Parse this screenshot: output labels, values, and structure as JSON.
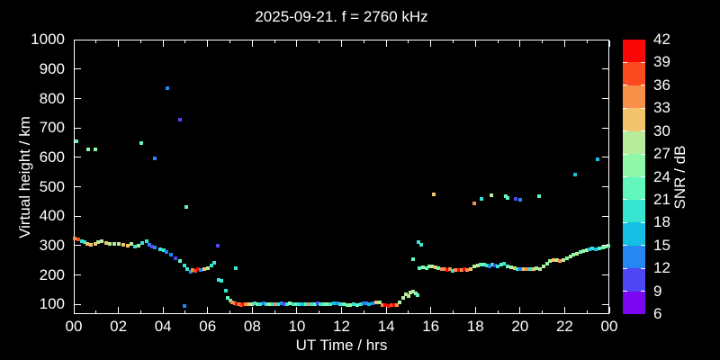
{
  "title": "2025-09-21. f = 2760 kHz",
  "chart_data": {
    "type": "scatter",
    "title": "2025-09-21. f = 2760 kHz",
    "xlabel": "UT Time / hrs",
    "ylabel": "Virtual height / km",
    "xlim": [
      0,
      24
    ],
    "ylim": [
      67,
      1001
    ],
    "grid": false,
    "background_color": "#000000",
    "frame_color": "#ffffff",
    "text_color": "#ffffff",
    "x_major_tick_hours": [
      0,
      2,
      4,
      6,
      8,
      10,
      12,
      14,
      16,
      18,
      20,
      22,
      24
    ],
    "x_tick_labels": [
      "00",
      "02",
      "04",
      "06",
      "08",
      "10",
      "12",
      "14",
      "16",
      "18",
      "20",
      "22",
      "00"
    ],
    "x_minor_tick_hours": [
      1,
      3,
      5,
      7,
      9,
      11,
      13,
      15,
      17,
      19,
      21,
      23
    ],
    "y_ticks": [
      100,
      200,
      300,
      400,
      500,
      600,
      700,
      800,
      900,
      1000
    ],
    "colorbar": {
      "label": "SNR / dB",
      "min": 6,
      "max": 42,
      "step": 3,
      "ticks": [
        6,
        9,
        12,
        15,
        18,
        21,
        24,
        27,
        30,
        33,
        36,
        39,
        42
      ],
      "colors_low_to_high": [
        "#7a06f2",
        "#4f46f5",
        "#2487f2",
        "#14bee4",
        "#38e4d2",
        "#63f7be",
        "#8ff8a8",
        "#b8eb9c",
        "#f2c56d",
        "#f99049",
        "#fb4a1e",
        "#fb0705"
      ]
    },
    "points_format": [
      "ut_hours",
      "virtual_height_km",
      "snr_db"
    ],
    "points": [
      [
        0.12,
        655,
        22
      ],
      [
        0.66,
        628,
        25
      ],
      [
        0.98,
        626,
        25
      ],
      [
        3.03,
        648,
        22
      ],
      [
        3.65,
        598,
        13
      ],
      [
        4.2,
        835,
        13
      ],
      [
        4.75,
        727,
        10
      ],
      [
        5.05,
        430,
        22
      ],
      [
        6.45,
        301,
        10
      ],
      [
        7.26,
        224,
        19
      ],
      [
        4.97,
        96,
        13
      ],
      [
        0.05,
        325,
        34
      ],
      [
        0.2,
        320,
        37
      ],
      [
        0.35,
        315,
        19
      ],
      [
        0.5,
        312,
        19
      ],
      [
        0.62,
        305,
        31
      ],
      [
        0.78,
        304,
        31
      ],
      [
        0.95,
        307,
        31
      ],
      [
        1.1,
        312,
        28
      ],
      [
        1.27,
        314,
        28
      ],
      [
        1.45,
        310,
        31
      ],
      [
        1.62,
        307,
        28
      ],
      [
        1.8,
        307,
        28
      ],
      [
        2.0,
        306,
        28
      ],
      [
        2.2,
        304,
        31
      ],
      [
        2.4,
        301,
        31
      ],
      [
        2.6,
        305,
        28
      ],
      [
        2.75,
        297,
        19
      ],
      [
        2.92,
        301,
        28
      ],
      [
        3.05,
        310,
        19
      ],
      [
        3.25,
        314,
        19
      ],
      [
        3.4,
        303,
        13
      ],
      [
        3.52,
        297,
        10
      ],
      [
        3.65,
        293,
        13
      ],
      [
        3.88,
        289,
        19
      ],
      [
        4.03,
        283,
        19
      ],
      [
        4.16,
        277,
        13
      ],
      [
        4.36,
        270,
        13
      ],
      [
        4.54,
        256,
        10
      ],
      [
        4.74,
        249,
        22
      ],
      [
        4.96,
        232,
        19
      ],
      [
        5.1,
        220,
        19
      ],
      [
        5.24,
        210,
        13
      ],
      [
        5.32,
        216,
        34
      ],
      [
        5.45,
        214,
        37
      ],
      [
        5.57,
        221,
        40
      ],
      [
        5.68,
        217,
        13
      ],
      [
        5.85,
        219,
        31
      ],
      [
        6.0,
        224,
        28
      ],
      [
        6.18,
        232,
        19
      ],
      [
        6.28,
        243,
        19
      ],
      [
        6.5,
        184,
        19
      ],
      [
        6.6,
        181,
        19
      ],
      [
        6.8,
        148,
        19
      ],
      [
        6.9,
        122,
        22
      ],
      [
        7.0,
        112,
        22
      ],
      [
        7.1,
        106,
        34
      ],
      [
        7.2,
        103,
        34
      ],
      [
        7.3,
        101,
        40
      ],
      [
        7.42,
        100,
        34
      ],
      [
        7.52,
        99,
        37
      ],
      [
        7.62,
        100,
        40
      ],
      [
        7.72,
        102,
        34
      ],
      [
        7.85,
        100,
        31
      ],
      [
        7.97,
        101,
        28
      ],
      [
        8.1,
        103,
        19
      ],
      [
        8.22,
        100,
        22
      ],
      [
        8.35,
        101,
        19
      ],
      [
        8.5,
        103,
        13
      ],
      [
        8.62,
        100,
        19
      ],
      [
        8.75,
        102,
        25
      ],
      [
        8.9,
        100,
        19
      ],
      [
        9.02,
        102,
        34
      ],
      [
        9.15,
        100,
        19
      ],
      [
        9.3,
        103,
        13
      ],
      [
        9.45,
        101,
        10
      ],
      [
        9.57,
        100,
        19
      ],
      [
        9.7,
        103,
        25
      ],
      [
        9.85,
        100,
        19
      ],
      [
        9.97,
        102,
        22
      ],
      [
        10.1,
        100,
        19
      ],
      [
        10.25,
        102,
        16
      ],
      [
        10.4,
        100,
        22
      ],
      [
        10.52,
        102,
        34
      ],
      [
        10.65,
        100,
        19
      ],
      [
        10.8,
        101,
        22
      ],
      [
        10.92,
        103,
        10
      ],
      [
        11.05,
        100,
        19
      ],
      [
        11.2,
        102,
        22
      ],
      [
        11.35,
        100,
        25
      ],
      [
        11.5,
        101,
        19
      ],
      [
        11.65,
        103,
        16
      ],
      [
        11.8,
        105,
        13
      ],
      [
        11.95,
        102,
        19
      ],
      [
        12.1,
        100,
        22
      ],
      [
        12.25,
        98,
        22
      ],
      [
        12.4,
        99,
        25
      ],
      [
        12.55,
        100,
        19
      ],
      [
        12.7,
        99,
        22
      ],
      [
        12.85,
        102,
        19
      ],
      [
        12.97,
        105,
        13
      ],
      [
        13.1,
        103,
        13
      ],
      [
        13.25,
        101,
        16
      ],
      [
        13.4,
        104,
        13
      ],
      [
        13.55,
        107,
        31
      ],
      [
        13.7,
        106,
        28
      ],
      [
        13.85,
        99,
        34
      ],
      [
        13.97,
        97,
        40
      ],
      [
        14.1,
        96,
        40
      ],
      [
        14.22,
        98,
        37
      ],
      [
        14.35,
        97,
        40
      ],
      [
        14.5,
        98,
        34
      ],
      [
        14.62,
        108,
        28
      ],
      [
        14.75,
        123,
        28
      ],
      [
        14.88,
        133,
        28
      ],
      [
        15.0,
        127,
        28
      ],
      [
        15.1,
        140,
        28
      ],
      [
        15.2,
        145,
        28
      ],
      [
        15.32,
        137,
        25
      ],
      [
        15.42,
        130,
        22
      ],
      [
        15.2,
        255,
        22
      ],
      [
        15.45,
        311,
        19
      ],
      [
        15.58,
        304,
        19
      ],
      [
        15.5,
        224,
        22
      ],
      [
        15.65,
        226,
        25
      ],
      [
        15.8,
        224,
        22
      ],
      [
        15.95,
        228,
        25
      ],
      [
        16.05,
        230,
        28
      ],
      [
        16.2,
        225,
        31
      ],
      [
        16.35,
        222,
        22
      ],
      [
        16.5,
        220,
        34
      ],
      [
        16.62,
        219,
        34
      ],
      [
        16.75,
        218,
        40
      ],
      [
        16.88,
        220,
        34
      ],
      [
        17.0,
        214,
        19
      ],
      [
        17.12,
        218,
        34
      ],
      [
        17.25,
        217,
        40
      ],
      [
        17.38,
        218,
        34
      ],
      [
        17.5,
        219,
        40
      ],
      [
        17.62,
        218,
        34
      ],
      [
        17.78,
        220,
        31
      ],
      [
        17.95,
        228,
        28
      ],
      [
        18.1,
        233,
        28
      ],
      [
        18.25,
        235,
        22
      ],
      [
        18.4,
        234,
        22
      ],
      [
        18.52,
        232,
        19
      ],
      [
        18.62,
        230,
        13
      ],
      [
        18.75,
        234,
        19
      ],
      [
        18.88,
        232,
        10
      ],
      [
        19.0,
        230,
        19
      ],
      [
        19.15,
        236,
        22
      ],
      [
        19.3,
        238,
        19
      ],
      [
        19.45,
        228,
        22
      ],
      [
        19.6,
        225,
        28
      ],
      [
        19.75,
        222,
        31
      ],
      [
        19.88,
        220,
        19
      ],
      [
        20.0,
        219,
        13
      ],
      [
        20.15,
        221,
        31
      ],
      [
        20.3,
        220,
        34
      ],
      [
        20.45,
        221,
        19
      ],
      [
        20.6,
        220,
        31
      ],
      [
        20.75,
        222,
        25
      ],
      [
        20.9,
        221,
        28
      ],
      [
        21.05,
        228,
        28
      ],
      [
        21.2,
        240,
        25
      ],
      [
        21.35,
        247,
        28
      ],
      [
        21.5,
        250,
        31
      ],
      [
        21.65,
        252,
        28
      ],
      [
        21.8,
        248,
        34
      ],
      [
        21.95,
        250,
        28
      ],
      [
        22.1,
        257,
        25
      ],
      [
        22.25,
        263,
        28
      ],
      [
        22.4,
        268,
        25
      ],
      [
        22.55,
        272,
        28
      ],
      [
        22.7,
        277,
        22
      ],
      [
        22.85,
        280,
        25
      ],
      [
        23.0,
        283,
        28
      ],
      [
        23.12,
        286,
        16
      ],
      [
        23.25,
        290,
        19
      ],
      [
        23.4,
        288,
        16
      ],
      [
        23.55,
        290,
        22
      ],
      [
        23.7,
        293,
        22
      ],
      [
        23.85,
        296,
        25
      ],
      [
        23.97,
        300,
        22
      ],
      [
        16.12,
        473,
        31
      ],
      [
        17.93,
        444,
        34
      ],
      [
        18.28,
        459,
        19
      ],
      [
        18.72,
        470,
        28
      ],
      [
        19.38,
        469,
        22
      ],
      [
        19.45,
        461,
        22
      ],
      [
        19.82,
        458,
        10
      ],
      [
        20.02,
        455,
        13
      ],
      [
        20.84,
        469,
        22
      ],
      [
        22.45,
        543,
        16
      ],
      [
        23.47,
        595,
        16
      ]
    ]
  }
}
